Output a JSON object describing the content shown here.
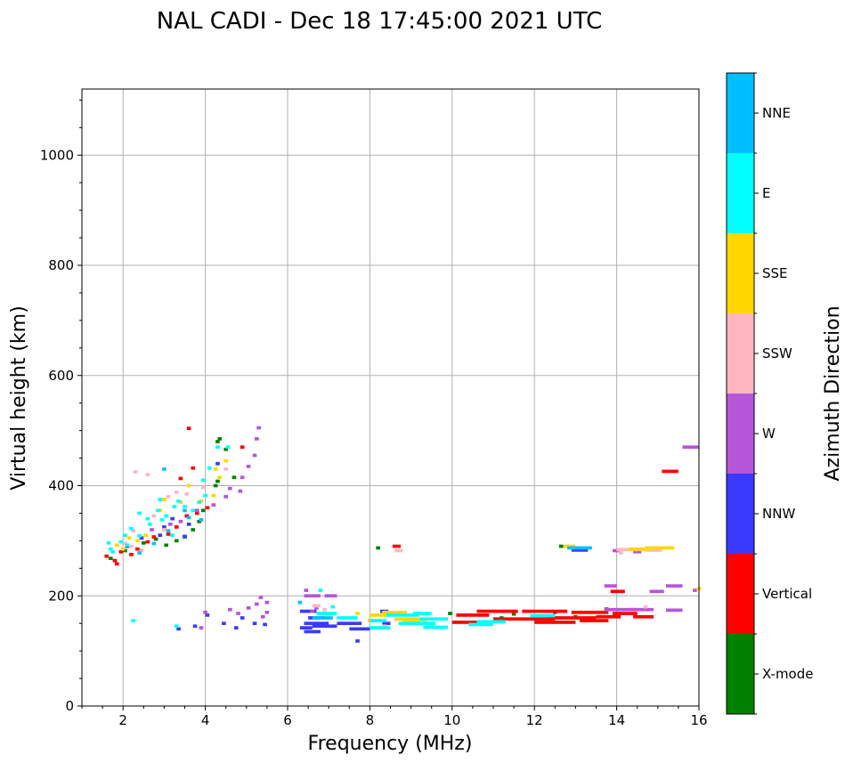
{
  "chart_data": {
    "type": "scatter",
    "title": "NAL CADI - Dec 18 17:45:00 2021 UTC",
    "xlabel": "Frequency (MHz)",
    "ylabel": "Virtual height (km)",
    "xlim": [
      1,
      16
    ],
    "ylim": [
      0,
      1120
    ],
    "xticks": [
      2,
      4,
      6,
      8,
      10,
      12,
      14,
      16
    ],
    "yticks": [
      0,
      200,
      400,
      600,
      800,
      1000
    ],
    "grid": true,
    "colorbar": {
      "label": "Azimuth Direction",
      "categories": [
        {
          "name": "X-mode",
          "color": "#008000"
        },
        {
          "name": "Vertical",
          "color": "#ff0000"
        },
        {
          "name": "NNW",
          "color": "#3a3aff"
        },
        {
          "name": "W",
          "color": "#b656d8"
        },
        {
          "name": "SSW",
          "color": "#ffb6c1"
        },
        {
          "name": "SSE",
          "color": "#ffd700"
        },
        {
          "name": "E",
          "color": "#00ffff"
        },
        {
          "name": "NNE",
          "color": "#00bfff"
        }
      ]
    },
    "point_size_mhz": 0.1,
    "point_size_km": 6,
    "series": [
      {
        "name": "X-mode",
        "points": [
          [
            1.7,
            268
          ],
          [
            2.05,
            282
          ],
          [
            2.5,
            296
          ],
          [
            2.8,
            303
          ],
          [
            3.05,
            292
          ],
          [
            3.3,
            300
          ],
          [
            3.5,
            307
          ],
          [
            3.7,
            320
          ],
          [
            3.85,
            335
          ],
          [
            3.95,
            355
          ],
          [
            4.25,
            400
          ],
          [
            4.3,
            408
          ],
          [
            4.35,
            485
          ],
          [
            4.7,
            415
          ],
          [
            4.5,
            466
          ],
          [
            4.3,
            480
          ],
          [
            8.2,
            287
          ],
          [
            12.65,
            290
          ],
          [
            13.75,
            176
          ],
          [
            9.95,
            168
          ],
          [
            10.5,
            152
          ],
          [
            11.2,
            160
          ],
          [
            11.5,
            167
          ],
          [
            12.5,
            170
          ],
          [
            13.0,
            162
          ]
        ]
      },
      {
        "name": "Vertical",
        "segments": [
          [
            10.1,
            10.9,
            165
          ],
          [
            10.0,
            10.8,
            152
          ],
          [
            10.6,
            11.6,
            172
          ],
          [
            11.0,
            12.5,
            158
          ],
          [
            11.7,
            12.8,
            172
          ],
          [
            12.0,
            13.0,
            152
          ],
          [
            12.3,
            13.5,
            160
          ],
          [
            12.9,
            13.8,
            170
          ],
          [
            13.1,
            13.8,
            155
          ],
          [
            13.5,
            14.1,
            162
          ],
          [
            13.9,
            14.5,
            168
          ],
          [
            14.4,
            14.9,
            162
          ],
          [
            13.85,
            14.2,
            208
          ],
          [
            15.1,
            15.5,
            426
          ],
          [
            8.55,
            8.75,
            290
          ]
        ],
        "points": [
          [
            1.6,
            272
          ],
          [
            1.8,
            264
          ],
          [
            1.95,
            280
          ],
          [
            2.2,
            275
          ],
          [
            2.35,
            285
          ],
          [
            2.6,
            298
          ],
          [
            2.75,
            307
          ],
          [
            3.1,
            312
          ],
          [
            3.3,
            325
          ],
          [
            3.55,
            345
          ],
          [
            3.6,
            504
          ],
          [
            3.8,
            350
          ],
          [
            3.7,
            432
          ],
          [
            4.05,
            360
          ],
          [
            4.9,
            470
          ],
          [
            3.4,
            413
          ],
          [
            1.85,
            258
          ]
        ]
      },
      {
        "name": "NNW",
        "segments": [
          [
            6.3,
            6.6,
            142
          ],
          [
            6.4,
            7.0,
            150
          ],
          [
            6.5,
            6.9,
            160
          ],
          [
            6.4,
            6.8,
            135
          ],
          [
            6.6,
            7.2,
            145
          ],
          [
            6.3,
            6.7,
            172
          ],
          [
            7.2,
            7.8,
            150
          ],
          [
            7.5,
            8.0,
            140
          ],
          [
            8.25,
            8.45,
            172
          ],
          [
            12.9,
            13.3,
            283
          ],
          [
            8.3,
            8.5,
            150
          ]
        ],
        "points": [
          [
            2.1,
            290
          ],
          [
            2.45,
            305
          ],
          [
            2.9,
            310
          ],
          [
            3.0,
            325
          ],
          [
            3.2,
            340
          ],
          [
            3.6,
            330
          ],
          [
            4.05,
            165
          ],
          [
            3.35,
            140
          ],
          [
            3.75,
            145
          ],
          [
            4.3,
            440
          ],
          [
            4.45,
            150
          ],
          [
            4.75,
            142
          ],
          [
            4.9,
            160
          ],
          [
            5.2,
            150
          ],
          [
            5.45,
            148
          ],
          [
            7.7,
            118
          ],
          [
            3.5,
            308
          ]
        ]
      },
      {
        "name": "W",
        "segments": [
          [
            6.4,
            6.8,
            200
          ],
          [
            6.9,
            7.2,
            200
          ],
          [
            13.7,
            14.0,
            218
          ],
          [
            13.7,
            14.5,
            175
          ],
          [
            14.4,
            14.6,
            280
          ],
          [
            14.3,
            14.9,
            175
          ],
          [
            14.8,
            15.15,
            208
          ],
          [
            15.2,
            15.6,
            218
          ],
          [
            15.2,
            15.6,
            174
          ],
          [
            15.6,
            16.0,
            470
          ],
          [
            13.9,
            14.1,
            282
          ]
        ],
        "points": [
          [
            2.7,
            320
          ],
          [
            3.15,
            330
          ],
          [
            3.4,
            335
          ],
          [
            3.8,
            355
          ],
          [
            4.2,
            365
          ],
          [
            4.5,
            380
          ],
          [
            4.6,
            395
          ],
          [
            4.9,
            415
          ],
          [
            5.05,
            435
          ],
          [
            5.2,
            455
          ],
          [
            5.25,
            485
          ],
          [
            5.3,
            505
          ],
          [
            4.85,
            390
          ],
          [
            4.8,
            168
          ],
          [
            4.6,
            175
          ],
          [
            5.05,
            178
          ],
          [
            5.25,
            185
          ],
          [
            5.4,
            162
          ],
          [
            5.5,
            170
          ],
          [
            5.5,
            188
          ],
          [
            4.0,
            170
          ],
          [
            5.35,
            197
          ],
          [
            6.6,
            172
          ],
          [
            6.7,
            178
          ],
          [
            6.9,
            168
          ],
          [
            6.45,
            210
          ],
          [
            3.9,
            142
          ],
          [
            15.9,
            210
          ]
        ]
      },
      {
        "name": "SSW",
        "segments": [
          [
            14.0,
            14.7,
            284
          ],
          [
            14.7,
            15.1,
            283
          ],
          [
            8.6,
            8.8,
            282
          ],
          [
            6.6,
            6.8,
            182
          ]
        ],
        "points": [
          [
            2.3,
            425
          ],
          [
            2.6,
            420
          ],
          [
            2.45,
            283
          ],
          [
            2.75,
            345
          ],
          [
            3.1,
            380
          ],
          [
            3.3,
            388
          ],
          [
            3.55,
            385
          ],
          [
            3.95,
            410
          ],
          [
            3.95,
            397
          ],
          [
            4.5,
            430
          ],
          [
            2.2,
            290
          ],
          [
            2.05,
            295
          ],
          [
            3.0,
            320
          ],
          [
            8.35,
            145
          ],
          [
            14.1,
            278
          ],
          [
            14.7,
            180
          ],
          [
            6.9,
            175
          ],
          [
            2.25,
            318
          ]
        ]
      },
      {
        "name": "SSE",
        "segments": [
          [
            14.3,
            14.8,
            285
          ],
          [
            8.0,
            8.5,
            165
          ],
          [
            8.3,
            8.9,
            170
          ],
          [
            8.8,
            9.4,
            152
          ],
          [
            8.6,
            9.2,
            158
          ],
          [
            14.7,
            15.4,
            287
          ],
          [
            12.7,
            13.0,
            290
          ]
        ],
        "points": [
          [
            1.85,
            292
          ],
          [
            2.0,
            285
          ],
          [
            2.35,
            300
          ],
          [
            2.65,
            330
          ],
          [
            2.9,
            355
          ],
          [
            3.0,
            375
          ],
          [
            3.4,
            370
          ],
          [
            3.6,
            400
          ],
          [
            4.25,
            430
          ],
          [
            4.5,
            445
          ],
          [
            4.35,
            415
          ],
          [
            2.15,
            305
          ],
          [
            3.9,
            372
          ],
          [
            4.2,
            382
          ],
          [
            8.0,
            155
          ],
          [
            7.7,
            168
          ],
          [
            16.0,
            213
          ],
          [
            2.55,
            310
          ]
        ]
      },
      {
        "name": "E",
        "segments": [
          [
            8.0,
            8.4,
            155
          ],
          [
            8.4,
            9.2,
            165
          ],
          [
            8.7,
            9.6,
            150
          ],
          [
            9.2,
            9.9,
            158
          ],
          [
            9.3,
            9.9,
            143
          ],
          [
            10.4,
            11.0,
            148
          ],
          [
            10.6,
            11.3,
            153
          ],
          [
            6.7,
            7.2,
            168
          ],
          [
            7.2,
            7.7,
            160
          ],
          [
            8.0,
            8.5,
            142
          ],
          [
            11.9,
            12.5,
            164
          ],
          [
            9.05,
            9.5,
            168
          ]
        ],
        "points": [
          [
            1.75,
            280
          ],
          [
            1.95,
            298
          ],
          [
            2.05,
            310
          ],
          [
            2.2,
            322
          ],
          [
            2.4,
            350
          ],
          [
            2.6,
            340
          ],
          [
            2.85,
            355
          ],
          [
            3.05,
            345
          ],
          [
            3.25,
            362
          ],
          [
            3.35,
            372
          ],
          [
            3.5,
            362
          ],
          [
            3.7,
            355
          ],
          [
            3.85,
            370
          ],
          [
            4.0,
            382
          ],
          [
            3.95,
            410
          ],
          [
            4.1,
            432
          ],
          [
            4.55,
            470
          ],
          [
            2.4,
            309
          ],
          [
            2.1,
            292
          ],
          [
            2.9,
            375
          ],
          [
            1.7,
            285
          ],
          [
            1.65,
            296
          ],
          [
            2.25,
            155
          ],
          [
            3.3,
            145
          ],
          [
            6.8,
            210
          ],
          [
            7.1,
            180
          ],
          [
            2.65,
            330
          ],
          [
            3.2,
            310
          ],
          [
            4.3,
            470
          ],
          [
            2.95,
            338
          ]
        ]
      },
      {
        "name": "NNE",
        "segments": [
          [
            12.8,
            13.4,
            287
          ],
          [
            6.6,
            7.1,
            160
          ]
        ],
        "points": [
          [
            3.5,
            355
          ],
          [
            3.6,
            342
          ],
          [
            3.9,
            338
          ],
          [
            6.3,
            188
          ],
          [
            3.0,
            430
          ],
          [
            3.1,
            318
          ],
          [
            2.75,
            295
          ],
          [
            2.4,
            278
          ]
        ]
      }
    ]
  }
}
